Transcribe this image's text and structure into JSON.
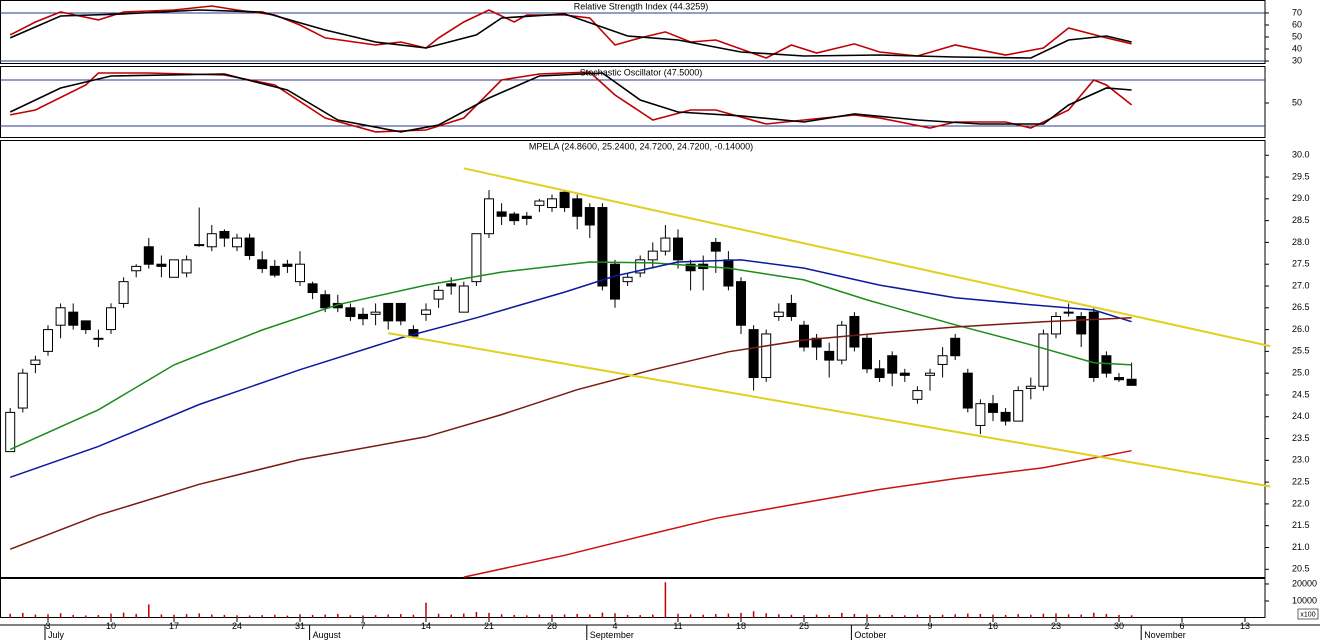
{
  "chart_data": [
    {
      "type": "line",
      "title": "Relative Strength Index (44.3259)",
      "ylim": [
        27.5,
        80.8
      ],
      "yticks": [
        70,
        60,
        50,
        40,
        30
      ],
      "reference_lines": [
        70,
        30
      ],
      "series": [
        {
          "color": "#c00000",
          "x": [
            0,
            2,
            4,
            7,
            9,
            13,
            16,
            18,
            21,
            23,
            25,
            29,
            31,
            33,
            34,
            36,
            38,
            40,
            41,
            44,
            46,
            48,
            50,
            52,
            54,
            56,
            60,
            62,
            64,
            67,
            69,
            72,
            75,
            79,
            82,
            84,
            87,
            89
          ],
          "values": [
            51.7,
            62.5,
            70.8,
            64.2,
            70.8,
            72.5,
            75.8,
            72.5,
            68.3,
            60,
            49.2,
            43.3,
            45.8,
            40.8,
            49.2,
            62.5,
            72.5,
            62.5,
            68.3,
            68.3,
            65.8,
            43.3,
            49.2,
            54.2,
            45.8,
            47.5,
            32.5,
            43.3,
            36.7,
            44.2,
            37.5,
            34.2,
            43.3,
            35,
            40.8,
            57.5,
            49.2,
            44.3
          ]
        },
        {
          "color": "#000000",
          "x": [
            0,
            4,
            9,
            15,
            20,
            25,
            29,
            33,
            37,
            39,
            44,
            49,
            53,
            58,
            63,
            69,
            75,
            81,
            84,
            87,
            89
          ],
          "values": [
            49.2,
            67.5,
            69.2,
            72.5,
            70.8,
            55.8,
            45.8,
            40.8,
            51.7,
            65.8,
            69.2,
            50.8,
            47.5,
            37.5,
            34.2,
            35,
            33.3,
            32.5,
            47.5,
            50.8,
            45.8
          ]
        }
      ]
    },
    {
      "type": "line",
      "title": "Stochastic Oscillator (47.5000)",
      "ylim": [
        4.3,
        98.3
      ],
      "yticks": [
        50
      ],
      "reference_lines": [
        80,
        20
      ],
      "series": [
        {
          "color": "#c00000",
          "x": [
            0,
            2,
            6,
            7,
            11,
            17,
            21,
            25,
            29,
            33,
            36,
            39,
            42,
            46,
            48,
            51,
            54,
            56,
            60,
            63,
            67,
            69,
            73,
            75,
            79,
            81,
            84,
            86,
            87,
            89
          ],
          "values": [
            34.4,
            40.9,
            73.5,
            89.1,
            89.1,
            86.5,
            73.5,
            30.4,
            12.2,
            14.8,
            30.4,
            80,
            87.8,
            90.4,
            60.4,
            27.8,
            40.9,
            40.9,
            22.6,
            27.8,
            34.4,
            30.4,
            17.4,
            25.2,
            25.2,
            17.4,
            40.9,
            80,
            73.5,
            47.5
          ]
        },
        {
          "color": "#000000",
          "x": [
            0,
            4,
            8,
            17,
            22,
            26,
            31,
            34,
            38,
            42,
            47,
            50,
            53,
            58,
            63,
            67,
            72,
            77,
            82,
            84,
            87,
            89
          ],
          "values": [
            38.3,
            69.6,
            85.2,
            87.8,
            67,
            27.8,
            12.2,
            21.3,
            56.5,
            85.2,
            89.1,
            53.9,
            38.3,
            33.1,
            25.2,
            35.7,
            27.8,
            22.6,
            22.6,
            47.4,
            69.6,
            67
          ]
        }
      ]
    },
    {
      "type": "candlestick",
      "title": "MPELA (24.8600, 25.2400, 24.7200, 24.7200, -0.14000)",
      "ylim": [
        20.3,
        30.35
      ],
      "yticks": [
        {
          "value": 30,
          "label": "30.0"
        },
        29.5,
        {
          "value": 29,
          "label": "29.0"
        },
        28.5,
        {
          "value": 28,
          "label": "28.0"
        },
        27.5,
        {
          "value": 27,
          "label": "27.0"
        },
        26.5,
        {
          "value": 26,
          "label": "26.0"
        },
        25.5,
        {
          "value": 25,
          "label": "25.0"
        },
        24.5,
        {
          "value": 24,
          "label": "24.0"
        },
        23.5,
        {
          "value": 23,
          "label": "23.0"
        },
        22.5,
        {
          "value": 22,
          "label": "22.0"
        },
        21.5,
        {
          "value": 21,
          "label": "21.0"
        },
        20.5
      ],
      "categories": [
        null,
        null,
        null,
        "3",
        null,
        null,
        null,
        null,
        "10",
        null,
        null,
        null,
        null,
        "17",
        null,
        null,
        null,
        null,
        "24",
        null,
        null,
        null,
        null,
        "31",
        null,
        null,
        null,
        null,
        "7",
        null,
        null,
        null,
        null,
        "14",
        null,
        null,
        null,
        null,
        "21",
        null,
        null,
        null,
        null,
        "28",
        null,
        null,
        null,
        null,
        "4",
        null,
        null,
        null,
        null,
        "11",
        null,
        null,
        null,
        null,
        "18",
        null,
        null,
        null,
        null,
        "25",
        null,
        null,
        null,
        null,
        "2",
        null,
        null,
        null,
        null,
        "9",
        null,
        null,
        null,
        null,
        "16",
        null,
        null,
        null,
        null,
        "23",
        null,
        null,
        null,
        null,
        "30",
        null,
        null,
        null,
        null,
        "6",
        null,
        null,
        null,
        null,
        "13",
        null,
        null
      ],
      "month_labels": [
        null,
        null,
        null,
        "July",
        null,
        null,
        null,
        null,
        null,
        null,
        null,
        null,
        null,
        null,
        null,
        null,
        null,
        null,
        null,
        null,
        null,
        null,
        null,
        null,
        "August",
        null,
        null,
        null,
        null,
        null,
        null,
        null,
        null,
        null,
        null,
        null,
        null,
        null,
        null,
        null,
        null,
        null,
        null,
        null,
        null,
        null,
        "September",
        null,
        null,
        null,
        null,
        null,
        null,
        null,
        null,
        null,
        null,
        null,
        null,
        null,
        null,
        null,
        null,
        null,
        null,
        null,
        null,
        "October",
        null,
        null,
        null,
        null,
        null,
        null,
        null,
        null,
        null,
        null,
        null,
        null,
        null,
        null,
        null,
        null,
        null,
        null,
        null,
        null,
        null,
        null,
        "November",
        null,
        null,
        null,
        null,
        null,
        null,
        null,
        null,
        null,
        null
      ],
      "open": [
        23.2,
        24.2,
        25.2,
        25.5,
        26.1,
        26.4,
        26.2,
        25.8,
        26.0,
        26.6,
        27.35,
        27.9,
        27.5,
        27.2,
        27.3,
        27.95,
        27.9,
        28.25,
        27.9,
        28.1,
        27.6,
        27.45,
        27.5,
        27.1,
        27.05,
        26.8,
        26.6,
        26.5,
        26.35,
        26.35,
        26.6,
        26.6,
        26.0,
        26.35,
        26.7,
        27.05,
        26.4,
        27.1,
        28.2,
        28.7,
        28.65,
        28.6,
        28.85,
        28.8,
        29.15,
        29.0,
        28.8,
        28.8,
        27.5,
        27.1,
        27.3,
        27.6,
        27.8,
        28.1,
        27.5,
        27.5,
        28.0,
        27.6,
        27.1,
        26.0,
        24.9,
        26.3,
        26.6,
        26.1,
        25.8,
        25.5,
        25.3,
        26.3,
        25.8,
        25.1,
        25.4,
        25.0,
        24.4,
        24.95,
        25.2,
        25.8,
        25.0,
        23.8,
        24.3,
        24.1,
        23.9,
        24.65,
        24.7,
        25.9,
        26.4,
        26.3,
        26.4,
        25.4,
        24.9,
        24.86,
        null,
        null,
        null,
        null,
        null,
        null,
        null,
        null,
        null,
        null,
        null
      ],
      "high": [
        24.2,
        25.1,
        25.4,
        26.1,
        26.6,
        26.6,
        26.2,
        26.0,
        26.6,
        27.2,
        27.5,
        28.1,
        27.7,
        27.6,
        27.7,
        28.8,
        28.4,
        28.3,
        28.2,
        28.2,
        27.8,
        27.6,
        27.6,
        27.8,
        27.1,
        26.9,
        26.8,
        26.6,
        26.5,
        26.6,
        26.6,
        26.6,
        26.1,
        26.6,
        27.0,
        27.2,
        27.1,
        28.2,
        29.2,
        28.9,
        28.7,
        28.7,
        29.0,
        29.1,
        29.2,
        29.1,
        28.9,
        28.9,
        27.6,
        27.3,
        27.7,
        28.0,
        28.4,
        28.3,
        27.6,
        27.7,
        28.1,
        27.8,
        27.2,
        26.1,
        26.0,
        26.6,
        26.8,
        26.2,
        25.9,
        25.7,
        26.2,
        26.4,
        25.9,
        25.3,
        25.5,
        25.1,
        24.7,
        25.1,
        25.6,
        25.9,
        25.1,
        24.4,
        24.5,
        24.2,
        24.7,
        24.9,
        26.0,
        26.4,
        26.6,
        26.4,
        26.5,
        25.5,
        25.0,
        25.24,
        null,
        null,
        null,
        null,
        null,
        null,
        null,
        null,
        null,
        null,
        null
      ],
      "low": [
        23.2,
        24.1,
        25.0,
        25.4,
        25.8,
        26.0,
        25.9,
        25.6,
        25.9,
        26.5,
        27.2,
        27.4,
        27.2,
        27.2,
        27.2,
        27.9,
        27.8,
        27.9,
        27.8,
        27.6,
        27.3,
        27.2,
        27.3,
        27.0,
        26.7,
        26.4,
        26.4,
        26.2,
        26.1,
        26.1,
        26.0,
        26.1,
        25.8,
        26.2,
        26.5,
        26.8,
        26.4,
        27.0,
        28.1,
        28.4,
        28.4,
        28.4,
        28.7,
        28.7,
        28.7,
        28.3,
        28.1,
        26.9,
        26.5,
        27.0,
        27.2,
        27.4,
        27.7,
        27.4,
        26.9,
        26.9,
        27.3,
        26.9,
        25.9,
        24.6,
        24.8,
        26.2,
        26.2,
        25.5,
        25.3,
        24.9,
        25.2,
        25.5,
        25.0,
        24.8,
        24.7,
        24.8,
        24.3,
        24.6,
        24.9,
        25.3,
        24.1,
        23.6,
        23.9,
        23.8,
        23.9,
        24.4,
        24.6,
        25.8,
        26.3,
        25.6,
        24.8,
        24.9,
        24.8,
        24.72,
        null,
        null,
        null,
        null,
        null,
        null,
        null,
        null,
        null,
        null,
        null
      ],
      "close": [
        24.1,
        25.0,
        25.3,
        26.0,
        26.5,
        26.1,
        26.0,
        25.8,
        26.5,
        27.1,
        27.45,
        27.5,
        27.45,
        27.6,
        27.6,
        27.95,
        28.2,
        28.1,
        28.1,
        27.7,
        27.4,
        27.25,
        27.45,
        27.5,
        26.85,
        26.5,
        26.5,
        26.3,
        26.25,
        26.4,
        26.2,
        26.2,
        25.85,
        26.45,
        26.9,
        27.0,
        27.0,
        28.2,
        29.0,
        28.6,
        28.5,
        28.55,
        28.95,
        29.0,
        28.8,
        28.6,
        28.4,
        27.0,
        26.7,
        27.2,
        27.6,
        27.8,
        28.1,
        27.6,
        27.35,
        27.4,
        27.8,
        27.0,
        26.1,
        24.9,
        25.9,
        26.4,
        26.3,
        25.6,
        25.6,
        25.3,
        26.1,
        25.6,
        25.1,
        24.9,
        25.0,
        24.95,
        24.6,
        25.0,
        25.4,
        25.4,
        24.2,
        24.3,
        24.1,
        23.9,
        24.6,
        24.7,
        25.9,
        26.3,
        26.4,
        25.9,
        24.9,
        25.0,
        24.85,
        24.72,
        null,
        null,
        null,
        null,
        null,
        null,
        null,
        null,
        null,
        null,
        null
      ],
      "series": [
        {
          "color": "#1a8c1a",
          "x": [
            0,
            7,
            13,
            20,
            26,
            33,
            39,
            46,
            51,
            57,
            63,
            68,
            75,
            81,
            86,
            89
          ],
          "values": [
            23.25,
            24.16,
            25.19,
            25.99,
            26.57,
            27.02,
            27.32,
            27.55,
            27.53,
            27.41,
            27.14,
            26.68,
            26.11,
            25.65,
            25.24,
            25.19
          ]
        },
        {
          "color": "#0a1aa0",
          "x": [
            0,
            7,
            15,
            23,
            31,
            37,
            44,
            48,
            53,
            58,
            63,
            69,
            75,
            81,
            86,
            89
          ],
          "values": [
            22.61,
            23.32,
            24.28,
            25.08,
            25.81,
            26.27,
            26.86,
            27.23,
            27.55,
            27.6,
            27.41,
            27.02,
            26.73,
            26.57,
            26.45,
            26.18
          ]
        },
        {
          "color": "#7a1a10",
          "x": [
            0,
            7,
            15,
            23,
            33,
            39,
            45,
            51,
            57,
            63,
            69,
            75,
            82,
            89
          ],
          "values": [
            20.96,
            21.74,
            22.45,
            23.02,
            23.54,
            24.05,
            24.62,
            25.08,
            25.49,
            25.76,
            25.92,
            26.06,
            26.18,
            26.27
          ]
        },
        {
          "color": "#cc1010",
          "x": [
            36,
            44,
            51,
            56,
            63,
            69,
            75,
            82,
            89
          ],
          "values": [
            20.32,
            20.82,
            21.32,
            21.67,
            22.03,
            22.33,
            22.58,
            22.83,
            23.22
          ]
        }
      ],
      "trendlines": [
        {
          "color": "#e0d020",
          "x": [
            36,
            100
          ],
          "values": [
            29.7,
            25.62
          ]
        },
        {
          "color": "#e0d020",
          "x": [
            30,
            100
          ],
          "values": [
            25.92,
            22.4
          ]
        }
      ]
    },
    {
      "type": "bar",
      "unit_label": "x100",
      "color": "#c00000",
      "ylim": [
        0,
        23500
      ],
      "yticks": [
        20000,
        10000
      ],
      "values": [
        2500,
        3000,
        2000,
        2200,
        2800,
        1800,
        1500,
        1700,
        2600,
        3200,
        2400,
        8000,
        2100,
        1900,
        2300,
        2700,
        2000,
        1800,
        1600,
        1500,
        1700,
        1900,
        1400,
        2200,
        1800,
        2000,
        2400,
        1600,
        1500,
        1700,
        2100,
        2300,
        1900,
        9000,
        2500,
        2000,
        2600,
        3500,
        3000,
        2200,
        1800,
        1600,
        2000,
        1900,
        2100,
        2400,
        2000,
        3200,
        2800,
        1800,
        1700,
        2000,
        21000,
        2500,
        2100,
        1900,
        2300,
        2600,
        3000,
        4000,
        2800,
        2200,
        1900,
        1700,
        2000,
        1800,
        3000,
        2400,
        2100,
        1900,
        1800,
        1600,
        2000,
        1700,
        1900,
        2200,
        2600,
        2400,
        2000,
        1800,
        2300,
        1900,
        2500,
        2700,
        2200,
        2000,
        3100,
        2400,
        1800,
        1600,
        null,
        null,
        null,
        null,
        null,
        null,
        null,
        null,
        null,
        null,
        null
      ]
    }
  ]
}
